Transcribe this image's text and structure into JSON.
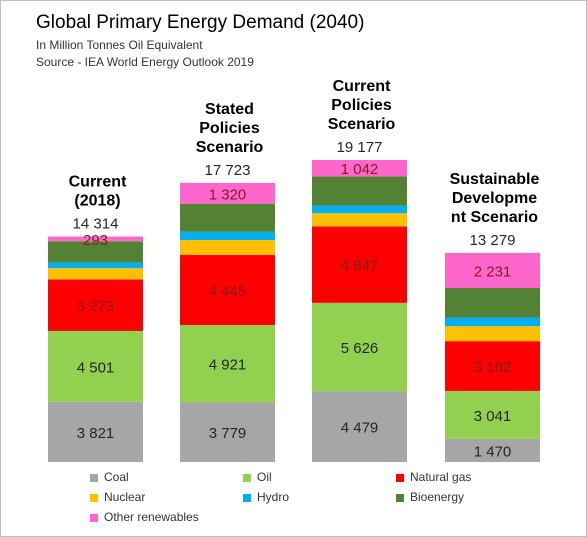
{
  "title": "Global Primary Energy Demand (2040)",
  "subtitle_1": "In Million Tonnes Oil Equivalent",
  "subtitle_2": "Source - IEA World Energy Outlook 2019",
  "chart_data": {
    "type": "bar",
    "stacked": true,
    "title": "Global Primary Energy Demand (2040)",
    "unit": "Million Tonnes Oil Equivalent",
    "categories": [
      {
        "label_lines": [
          "Current",
          "(2018)"
        ],
        "total": 14314,
        "total_label": "14 314"
      },
      {
        "label_lines": [
          "Stated",
          "Policies",
          "Scenario"
        ],
        "total": 17723,
        "total_label": "17 723"
      },
      {
        "label_lines": [
          "Current",
          "Policies",
          "Scenario"
        ],
        "total": 19177,
        "total_label": "19 177"
      },
      {
        "label_lines": [
          "Sustainable",
          "Developme",
          "nt Scenario"
        ],
        "total": 13279,
        "total_label": "13 279"
      }
    ],
    "series": [
      {
        "name": "Coal",
        "color": "#a6a6a6",
        "values": [
          3821,
          3779,
          4479,
          1470
        ],
        "labels": [
          "3 821",
          "3 779",
          "4 479",
          "1 470"
        ]
      },
      {
        "name": "Oil",
        "color": "#92d050",
        "values": [
          4501,
          4921,
          5626,
          3041
        ],
        "labels": [
          "4 501",
          "4 921",
          "5 626",
          "3 041"
        ]
      },
      {
        "name": "Natural gas",
        "color": "#ff0000",
        "values": [
          3273,
          4445,
          4847,
          3162
        ],
        "labels": [
          "3 273",
          "4 445",
          "4 847",
          "3 162"
        ]
      },
      {
        "name": "Nuclear",
        "color": "#ffc000",
        "values": [
          710,
          950,
          850,
          950
        ],
        "labels": [
          "",
          "",
          "",
          ""
        ]
      },
      {
        "name": "Hydro",
        "color": "#00b0f0",
        "values": [
          360,
          520,
          480,
          550
        ],
        "labels": [
          "",
          "",
          "",
          ""
        ]
      },
      {
        "name": "Bioenergy",
        "color": "#548235",
        "values": [
          1356,
          1788,
          1853,
          1875
        ],
        "labels": [
          "",
          "",
          "",
          ""
        ]
      },
      {
        "name": "Other renewables",
        "color": "#ff66cc",
        "values": [
          293,
          1320,
          1042,
          2231
        ],
        "labels": [
          "293",
          "1 320",
          "1 042",
          "2 231"
        ]
      }
    ],
    "ylim": [
      0,
      19177
    ],
    "grid": false,
    "legend_position": "bottom"
  }
}
